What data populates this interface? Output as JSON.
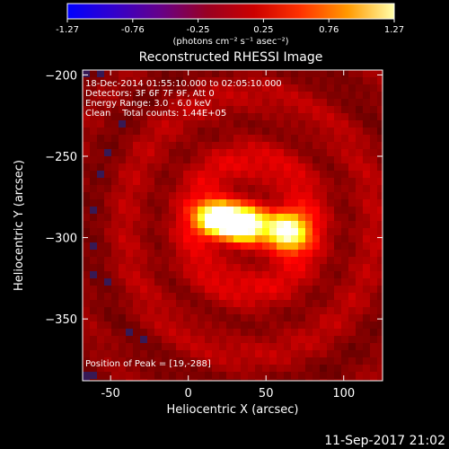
{
  "chart_data": {
    "type": "heatmap",
    "title": "Reconstructed RHESSI Image",
    "xlabel": "Heliocentric X (arcsec)",
    "ylabel": "Heliocentric Y (arcsec)",
    "xlim": [
      -68,
      125
    ],
    "ylim": [
      -388,
      -197
    ],
    "x_ticks": [
      -50,
      0,
      50,
      100
    ],
    "y_ticks": [
      -200,
      -250,
      -300,
      -350
    ],
    "colorbar": {
      "range": [
        -1.27,
        1.27
      ],
      "ticks": [
        "-1.27",
        "-0.76",
        "-0.25",
        "0.25",
        "0.76",
        "1.27"
      ],
      "unit_label": "(photons cm⁻² s⁻¹ asec⁻²)",
      "colors": [
        "#0000ff",
        "#3300cc",
        "#660088",
        "#990022",
        "#cc0000",
        "#ff3300",
        "#ff9900",
        "#ffffaa"
      ]
    },
    "annotations": [
      "18-Dec-2014 01:55:10.000 to 02:05:10.000",
      "Detectors: 3F 6F 7F 9F, Att 0",
      "Energy Range: 3.0 - 6.0 keV",
      "Clean    Total counts: 1.44E+05"
    ],
    "peak_label": "Position of Peak = [19,-288]",
    "sources": [
      {
        "x": 19,
        "y": -288,
        "amp": 1.27,
        "sx": 9,
        "sy": 7
      },
      {
        "x": 35,
        "y": -292,
        "amp": 1.0,
        "sx": 10,
        "sy": 7
      },
      {
        "x": 63,
        "y": -296,
        "amp": 1.12,
        "sx": 9,
        "sy": 8
      }
    ],
    "background_level": 0.4
  },
  "footer": {
    "timestamp": "11-Sep-2017 21:02"
  }
}
